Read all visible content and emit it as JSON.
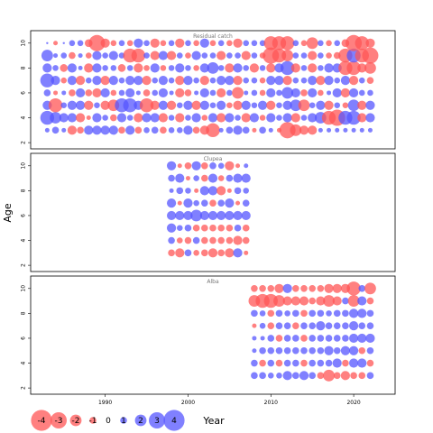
{
  "chart_data": {
    "type": "scatter",
    "ylabel": "Age",
    "xlabel": "Year",
    "xlim": [
      1981,
      2025
    ],
    "x_ticks": [
      1990,
      2000,
      2010,
      2020
    ],
    "y_ticks": [
      2,
      4,
      6,
      8,
      10
    ],
    "ylim": [
      1.5,
      11
    ],
    "colors": {
      "positive": "#5555ff",
      "negative": "#ff5555"
    },
    "panels": [
      {
        "title": "Residual catch",
        "years": [
          1983,
          2022
        ],
        "ages": [
          3,
          10
        ],
        "rows": {
          "10": [
            0,
            -0.5,
            0,
            0.8,
            0.8,
            -1.2,
            -3,
            -1.5,
            -0.8,
            0.8,
            -0.8,
            1.5,
            0.8,
            -1.5,
            -0.8,
            0.8,
            -1.5,
            0.8,
            -0.8,
            1.5,
            -0.8,
            0.8,
            -0.8,
            -1.5,
            0.8,
            0.8,
            0.8,
            -2.5,
            -2.5,
            -2.5,
            0.8,
            -0.8,
            -2,
            0.8,
            -0.8,
            0.8,
            -1.2,
            -3,
            -2.5,
            -1.5
          ],
          "9": [
            2,
            0.5,
            0.8,
            -1,
            0.5,
            -0.8,
            1.5,
            0.8,
            1.5,
            0.8,
            -2.5,
            -2.5,
            0.8,
            -1.5,
            1.5,
            -1.5,
            0.8,
            -0.8,
            1.5,
            0.8,
            0.8,
            -1.5,
            0.8,
            0.8,
            -1.5,
            0.8,
            -0.8,
            -3,
            -2.5,
            -2,
            0.8,
            0.8,
            -1.5,
            0.8,
            -0.8,
            -1,
            -2.5,
            2.5,
            -2.5,
            -3
          ],
          "8": [
            1.5,
            0.8,
            -1.2,
            1.5,
            0.5,
            -1.5,
            1.5,
            0.8,
            0.8,
            -1.2,
            0.8,
            -1.5,
            -0.8,
            1.5,
            -0.8,
            0.8,
            1.5,
            0.8,
            -0.8,
            1.5,
            2,
            0.8,
            -1.5,
            1.5,
            0.8,
            -1.5,
            0.8,
            -1.5,
            1.5,
            2.5,
            -1.5,
            0.8,
            -1.5,
            0.8,
            1.5,
            1.5,
            -2.5,
            -2.5,
            -1.5,
            -2
          ],
          "7": [
            2.5,
            1.5,
            -0.8,
            1.5,
            -1.5,
            0.8,
            1.5,
            -1.5,
            1.5,
            0.8,
            1.5,
            1.5,
            -1.5,
            0.8,
            1.5,
            0.8,
            -1.5,
            1.5,
            0.8,
            -1.5,
            0.8,
            1.5,
            1.5,
            -1.5,
            0.8,
            0.8,
            -0.8,
            1.5,
            1.5,
            -1.5,
            0.8,
            0.8,
            1.5,
            -1.5,
            1.5,
            0.8,
            1.5,
            -1.5,
            0.8,
            -1
          ],
          "6": [
            1,
            -0.5,
            0.5,
            -1,
            1.5,
            -1,
            -1.5,
            1.5,
            -0.8,
            0.8,
            1.5,
            0.5,
            -1,
            0.8,
            1.5,
            0.5,
            -1.5,
            -1,
            0.5,
            1.5,
            0.8,
            -1.5,
            0.8,
            -2,
            0.5,
            0.8,
            -0.8,
            1.5,
            0.8,
            2,
            1.5,
            -1,
            1.5,
            -0.8,
            0.5,
            1.5,
            -1.5,
            1.5,
            0.8,
            0.8
          ],
          "5": [
            1.5,
            -2.5,
            0.8,
            1.5,
            1.5,
            -1.5,
            0.8,
            -1.5,
            -2,
            2.5,
            2.5,
            1.5,
            -2.5,
            -1.5,
            1.5,
            -1.5,
            0.8,
            1.5,
            -1.5,
            1.5,
            0.8,
            1.5,
            -0.8,
            -1.5,
            1.5,
            0.8,
            1.5,
            -1.5,
            0.8,
            1.5,
            2,
            -2,
            0.8,
            1.5,
            -1.5,
            0.8,
            -0.8,
            2,
            -1.5,
            1.5
          ],
          "4": [
            2.5,
            2,
            1.5,
            1.5,
            -1.5,
            -0.5,
            1.5,
            0.8,
            -1,
            1.5,
            0.8,
            -1.5,
            1.5,
            1.5,
            -1.5,
            0.8,
            -1.5,
            0.8,
            1.5,
            -0.8,
            1.5,
            -1.5,
            1.5,
            0.8,
            -1.5,
            1.5,
            -0.8,
            1.5,
            0.8,
            1.5,
            -1.5,
            0.8,
            1.5,
            2,
            -2.5,
            -3,
            2.5,
            2.5,
            -1.5,
            1.5
          ],
          "3": [
            0.5,
            1,
            0.5,
            -1.5,
            -1,
            1.5,
            1.5,
            1.5,
            1.5,
            -1,
            1.5,
            -1,
            0.8,
            1,
            -1,
            0.8,
            0.8,
            1.5,
            -1,
            -1.5,
            -2.5,
            0.5,
            1,
            1.5,
            1,
            -0.5,
            1,
            0.5,
            -0.5,
            -3,
            -2,
            -1.5,
            -1.5,
            0.5,
            0.5,
            0.5,
            0.5,
            0.5,
            0.5,
            0.5
          ]
        }
      },
      {
        "title": "Clupea",
        "years": [
          1998,
          2007
        ],
        "ages": [
          3,
          10
        ],
        "rows": {
          "10": [
            1.5,
            -0.5,
            -1,
            1.5,
            -1,
            1,
            0.8,
            -1.5,
            -0.5,
            0.5
          ],
          "9": [
            1,
            1.5,
            -0.5,
            0.8,
            -1,
            1.5,
            -0.8,
            1,
            1.5,
            1.5
          ],
          "8": [
            0.5,
            1,
            0.8,
            -0.5,
            1.5,
            1.5,
            -1.5,
            -0.5,
            1,
            0.8
          ],
          "7": [
            1.5,
            -0.5,
            1.5,
            0.8,
            1,
            -1,
            1,
            1.5,
            -0.5,
            1
          ],
          "6": [
            1.5,
            1.5,
            1.5,
            2,
            1.5,
            1.5,
            1.5,
            1.5,
            1.5,
            1.5
          ],
          "5": [
            1.5,
            0.8,
            1,
            -1,
            -1,
            -1,
            -1,
            -1,
            1,
            -1
          ],
          "4": [
            1,
            -0.8,
            -1,
            1,
            -1,
            -1,
            -1,
            -1,
            -1.5,
            -1
          ],
          "3": [
            -1,
            -1.5,
            1,
            -0.8,
            -1,
            -1.5,
            -1,
            -1.5,
            1.5,
            -0.5
          ]
        }
      },
      {
        "title": "Alba",
        "years": [
          2008,
          2022
        ],
        "ages": [
          3,
          10
        ],
        "rows": {
          "10": [
            -1,
            -1,
            -1,
            -1.5,
            1.5,
            -1,
            -1,
            -1,
            -1,
            -1.5,
            -1.5,
            -1.5,
            -2.5,
            1,
            -2
          ],
          "9": [
            -2,
            -2.5,
            -2.5,
            -2,
            -1.5,
            -1.5,
            -1.5,
            -1,
            -1.5,
            -2,
            -1.5,
            1,
            -2,
            1.5,
            -1
          ],
          "8": [
            1,
            0.8,
            -1,
            1,
            0.8,
            1,
            -1,
            1,
            1,
            0.8,
            1,
            1,
            1.5,
            1.5,
            1
          ],
          "7": [
            -0.5,
            0.8,
            -1,
            1,
            1,
            -1,
            1,
            1,
            1.5,
            1,
            1,
            1,
            1.5,
            1,
            1
          ],
          "6": [
            0.5,
            0.5,
            1,
            -1,
            1,
            1,
            -1,
            1,
            1,
            1,
            1,
            1,
            1.5,
            1.5,
            1.5
          ],
          "5": [
            0.5,
            1,
            1,
            1,
            1,
            1,
            1,
            1,
            1,
            1.5,
            1,
            1.5,
            1.5,
            -1,
            1
          ],
          "4": [
            1,
            -1,
            1,
            -1,
            1,
            1,
            -1,
            1,
            1,
            1,
            1.5,
            -1,
            1.5,
            1.5,
            -1
          ],
          "3": [
            1,
            1,
            0.8,
            0.8,
            1.5,
            1,
            1.5,
            1,
            -1,
            -2,
            -1,
            -1.5,
            -1,
            -1,
            1
          ]
        }
      }
    ],
    "legend": {
      "values": [
        "-4",
        "-3",
        "-2",
        "-1",
        "0",
        "1",
        "2",
        "3",
        "4"
      ],
      "title": "Year"
    }
  }
}
